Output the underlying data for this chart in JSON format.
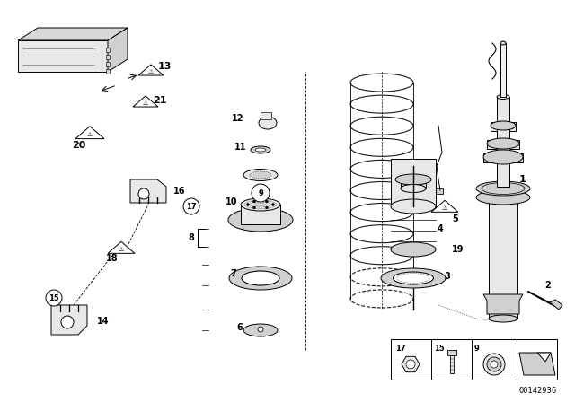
{
  "background_color": "#ffffff",
  "part_number": "00142936",
  "black": "#000000",
  "lgray": "#e8e8e8",
  "mgray": "#d0d0d0",
  "dgray": "#b0b0b0"
}
